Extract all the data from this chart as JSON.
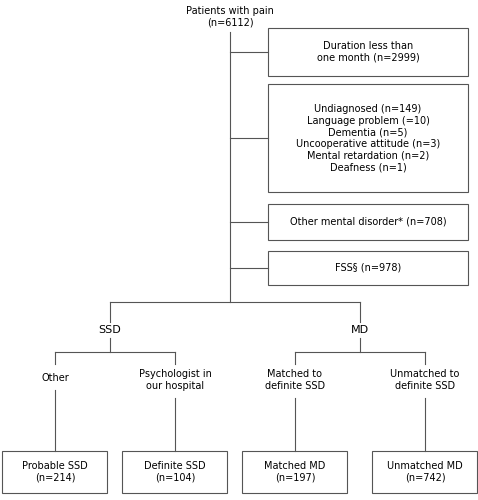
{
  "title": "Patients with pain\n(n=6112)",
  "box1": "Duration less than\none month (n=2999)",
  "box2": "Undiagnosed (n=149)\nLanguage problem (=10)\nDementia (n=5)\nUncooperative attitude (n=3)\nMental retardation (n=2)\nDeafness (n=1)",
  "box3": "Other mental disorder* (n=708)",
  "box4": "FSS§ (n=978)",
  "label_ssd": "SSD",
  "label_md": "MD",
  "label_other": "Other",
  "label_psych": "Psychologist in\nour hospital",
  "label_matched": "Matched to\ndefinite SSD",
  "label_unmatched": "Unmatched to\ndefinite SSD",
  "box_ssd1": "Probable SSD\n(n=214)",
  "box_ssd2": "Definite SSD\n(n=104)",
  "box_md1": "Matched MD\n(n=197)",
  "box_md2": "Unmatched MD\n(n=742)",
  "bg_color": "#ffffff",
  "box_color": "#ffffff",
  "box_edge": "#555555",
  "line_color": "#555555",
  "text_color": "#000000",
  "font_size": 7.0
}
